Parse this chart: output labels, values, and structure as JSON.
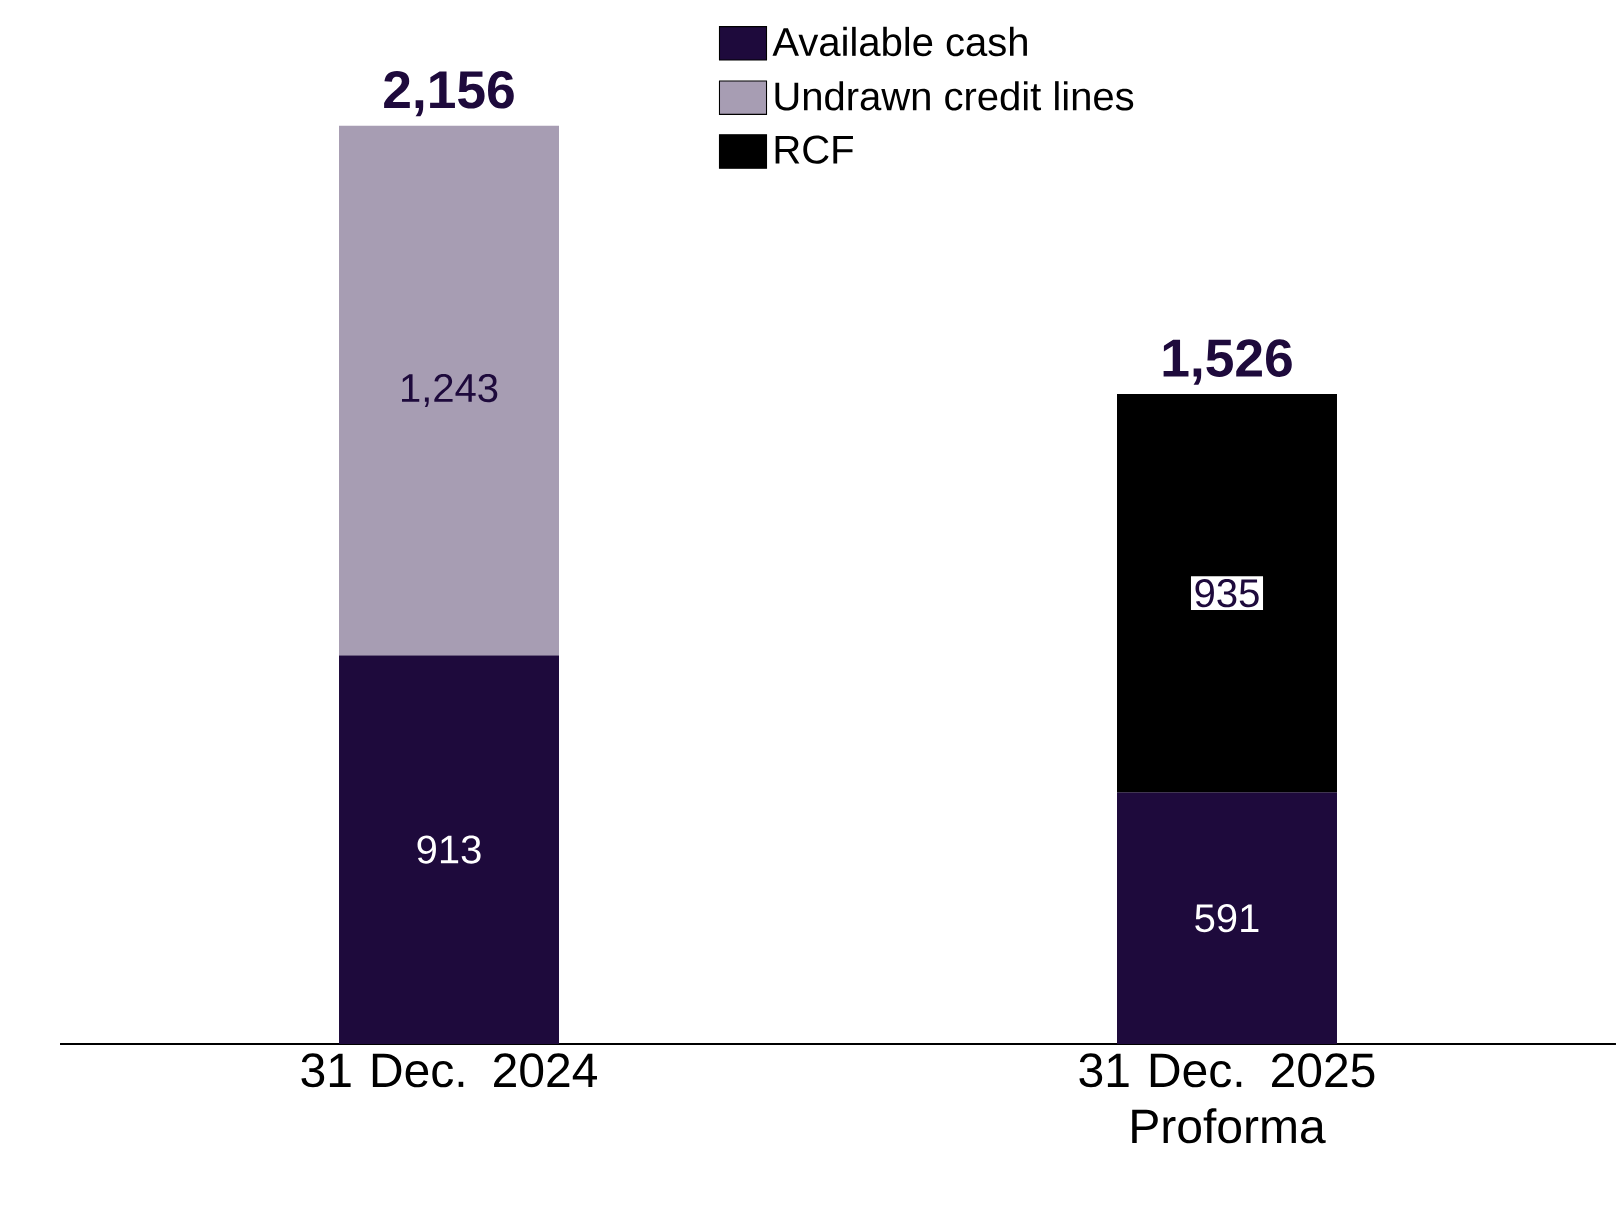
{
  "chart_data": {
    "type": "bar",
    "stacked": true,
    "legend": "top",
    "data_labels": true,
    "categories": [
      "31 Dec. 2024",
      "31 Dec. 2025 Proforma"
    ],
    "series": [
      {
        "name": "Available cash",
        "color": "#1e0a3c",
        "values": [
          913,
          591
        ],
        "value_labels": [
          "913",
          "591"
        ]
      },
      {
        "name": "Undrawn credit lines",
        "color": "#a79db3",
        "values": [
          1243,
          null
        ],
        "value_labels": [
          "1,243",
          null
        ]
      },
      {
        "name": "RCF",
        "color": "#000000",
        "values": [
          null,
          935
        ],
        "value_labels": [
          null,
          "935"
        ]
      }
    ],
    "totals": [
      "2,156",
      "1,526"
    ]
  }
}
